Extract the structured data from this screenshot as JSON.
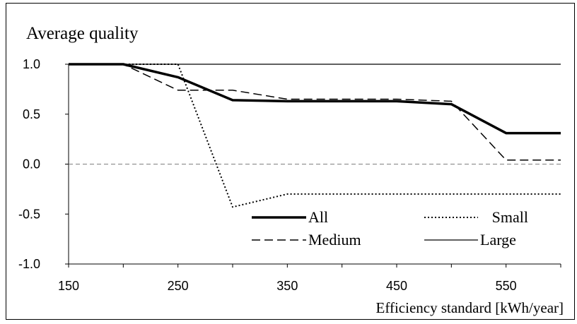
{
  "chart_data": {
    "type": "line",
    "title": "Average quality",
    "xlabel": "Efficiency standard [kWh/year]",
    "ylabel": "",
    "xlim": [
      150,
      600
    ],
    "ylim": [
      -1.0,
      1.0
    ],
    "x_ticks": [
      "150",
      "250",
      "350",
      "450",
      "550"
    ],
    "y_ticks": [
      "1.0",
      "0.5",
      "0.0",
      "-0.5",
      "-1.0"
    ],
    "x": [
      150,
      200,
      250,
      300,
      350,
      400,
      450,
      500,
      550,
      600
    ],
    "series": [
      {
        "name": "All",
        "style": "solid-thick",
        "values": [
          1.0,
          1.0,
          0.87,
          0.64,
          0.63,
          0.63,
          0.63,
          0.6,
          0.31,
          0.31
        ]
      },
      {
        "name": "Small",
        "style": "dotted",
        "values": [
          1.0,
          1.0,
          1.0,
          -0.43,
          -0.3,
          -0.3,
          -0.3,
          -0.3,
          -0.3,
          -0.3
        ]
      },
      {
        "name": "Medium",
        "style": "dashed",
        "values": [
          1.0,
          1.0,
          0.74,
          0.74,
          0.65,
          0.65,
          0.65,
          0.63,
          0.04,
          0.04
        ]
      },
      {
        "name": "Large",
        "style": "solid-thin",
        "values": [
          1.0,
          1.0,
          1.0,
          1.0,
          1.0,
          1.0,
          1.0,
          1.0,
          1.0,
          1.0
        ]
      }
    ],
    "reference_line": {
      "y": 0.0,
      "style": "dashed",
      "color": "#808080"
    },
    "legend_position": "bottom-right",
    "grid": false,
    "line_color": "#000000"
  }
}
